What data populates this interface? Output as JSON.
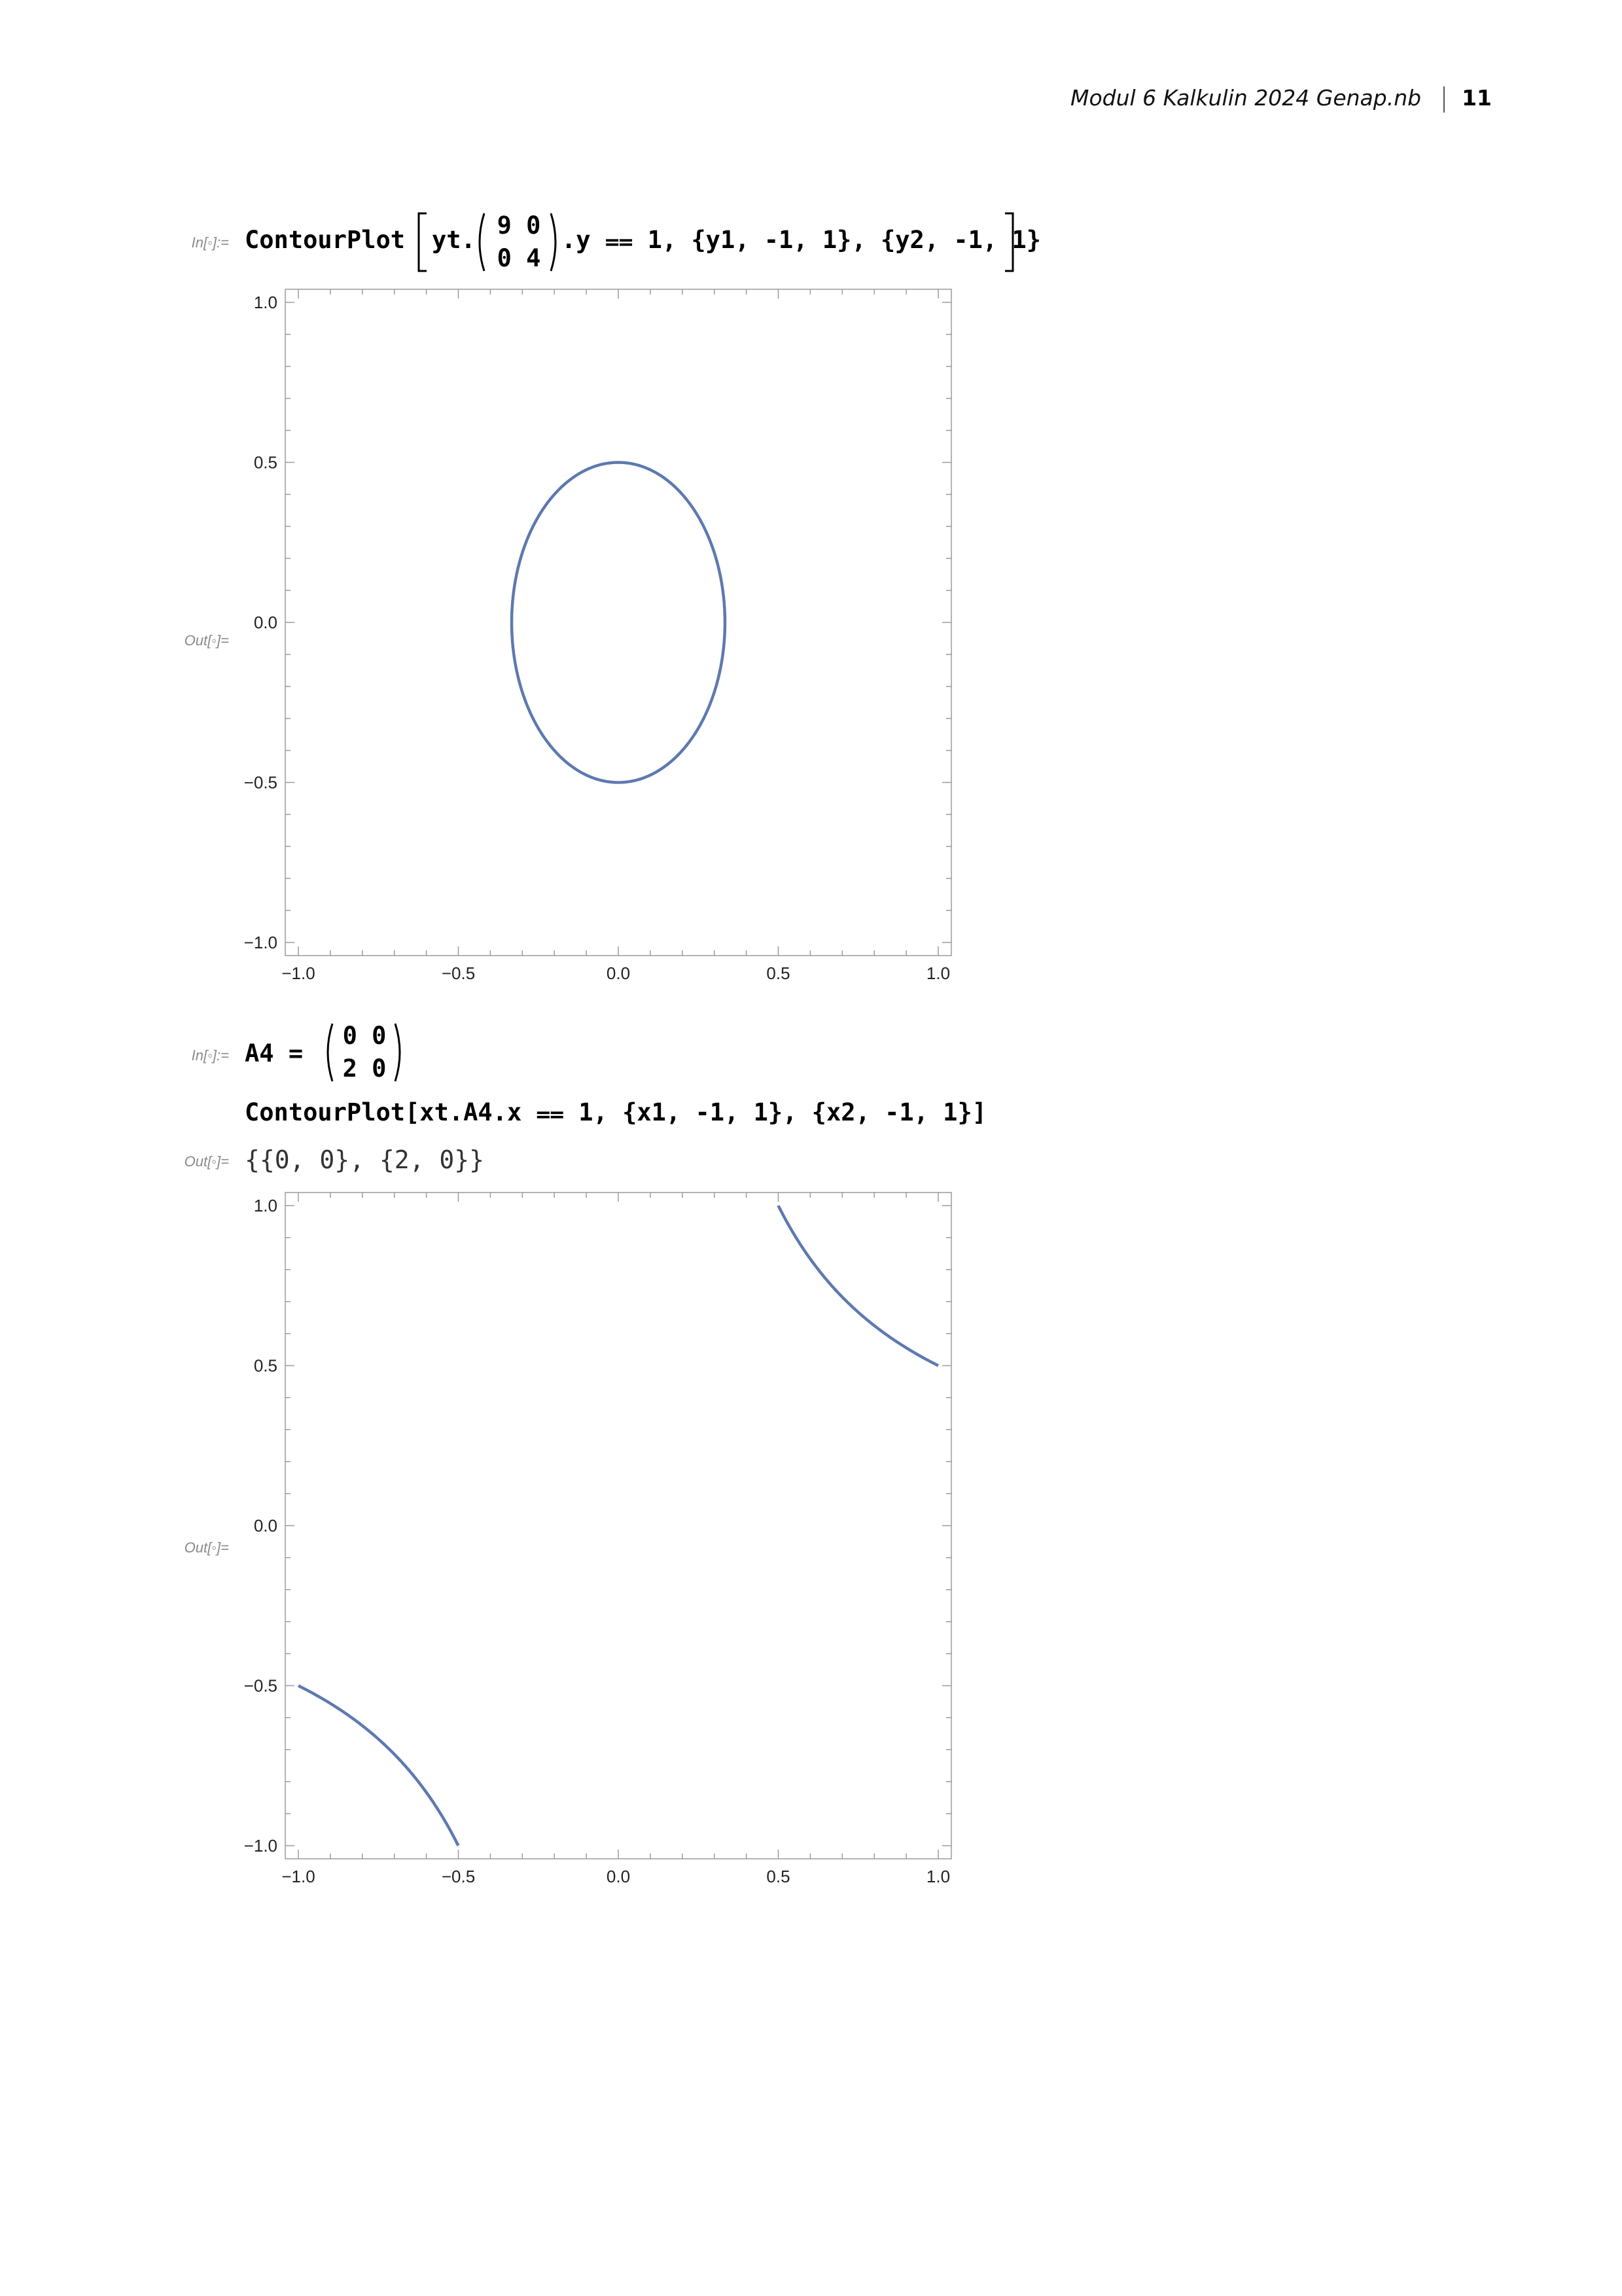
{
  "header": {
    "title": "Modul 6 Kalkulin 2024 Genap.nb",
    "page_number": "11"
  },
  "cells": [
    {
      "in_label": "In[◦]:=",
      "code_prefix": "ContourPlot",
      "code_inner_start": "yt.",
      "matrix": [
        [
          "9",
          "0"
        ],
        [
          "0",
          "4"
        ]
      ],
      "code_inner_end": ".y ⩵ 1, {y1, -1, 1}, {y2, -1, 1}",
      "out_label": "Out[◦]="
    },
    {
      "in_label": "In[◦]:=",
      "assign_lhs": "A4 =",
      "matrix": [
        [
          "0",
          "0"
        ],
        [
          "2",
          "0"
        ]
      ],
      "code_line2": "ContourPlot[xt.A4.x ⩵ 1, {x1, -1, 1}, {x2, -1, 1}]",
      "out_label_1": "Out[◦]=",
      "output_text": "{{0, 0}, {2, 0}}",
      "out_label_2": "Out[◦]="
    }
  ],
  "chart_data": [
    {
      "type": "contour",
      "equation": "9*x^2 + 4*y^2 = 1",
      "xlim": [
        -1,
        1
      ],
      "ylim": [
        -1,
        1
      ],
      "x_ticks": [
        "-1.0",
        "-0.5",
        "0.0",
        "0.5",
        "1.0"
      ],
      "y_ticks": [
        "1.0",
        "0.5",
        "0.0",
        "-0.5",
        "-1.0"
      ],
      "line_color": "#5e79b0",
      "curves": [
        {
          "kind": "ellipse",
          "cx": 0,
          "cy": 0,
          "rx": 0.3333,
          "ry": 0.5
        }
      ]
    },
    {
      "type": "contour",
      "equation": "2*x1*x2 = 1",
      "xlim": [
        -1,
        1
      ],
      "ylim": [
        -1,
        1
      ],
      "x_ticks": [
        "-1.0",
        "-0.5",
        "0.0",
        "0.5",
        "1.0"
      ],
      "y_ticks": [
        "1.0",
        "0.5",
        "0.0",
        "-0.5",
        "-1.0"
      ],
      "line_color": "#5e79b0",
      "curves": [
        {
          "kind": "hyperbola",
          "x_from": 0.5,
          "x_to": 1.0,
          "k": 0.5
        },
        {
          "kind": "hyperbola",
          "x_from": -1.0,
          "x_to": -0.5,
          "k": 0.5
        }
      ]
    }
  ]
}
